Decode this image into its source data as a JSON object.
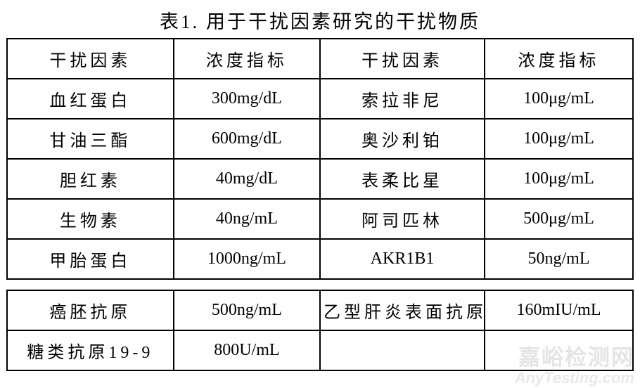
{
  "page_title": "表1. 用于干扰因素研究的干扰物质",
  "colors": {
    "background": "#ffffff",
    "border": "#000000",
    "text": "#000000",
    "watermark": "#e4e4e4"
  },
  "table1": {
    "headers": [
      "干扰因素",
      "浓度指标",
      "干扰因素",
      "浓度指标"
    ],
    "rows": [
      [
        "血红蛋白",
        "300mg/dL",
        "索拉非尼",
        "100μg/mL"
      ],
      [
        "甘油三酯",
        "600mg/dL",
        "奥沙利铂",
        "100μg/mL"
      ],
      [
        "胆红素",
        "40mg/dL",
        "表柔比星",
        "100μg/mL"
      ],
      [
        "生物素",
        "40ng/mL",
        "阿司匹林",
        "500μg/mL"
      ],
      [
        "甲胎蛋白",
        "1000ng/mL",
        "AKR1B1",
        "50ng/mL"
      ]
    ]
  },
  "table2": {
    "rows": [
      [
        "癌胚抗原",
        "500ng/mL",
        "乙型肝炎表面抗原",
        "160mIU/mL"
      ],
      [
        "糖类抗原19-9",
        "800U/mL",
        "",
        ""
      ]
    ]
  },
  "watermark": {
    "name": "嘉峪检测网",
    "url": "AnyTesting.com"
  }
}
